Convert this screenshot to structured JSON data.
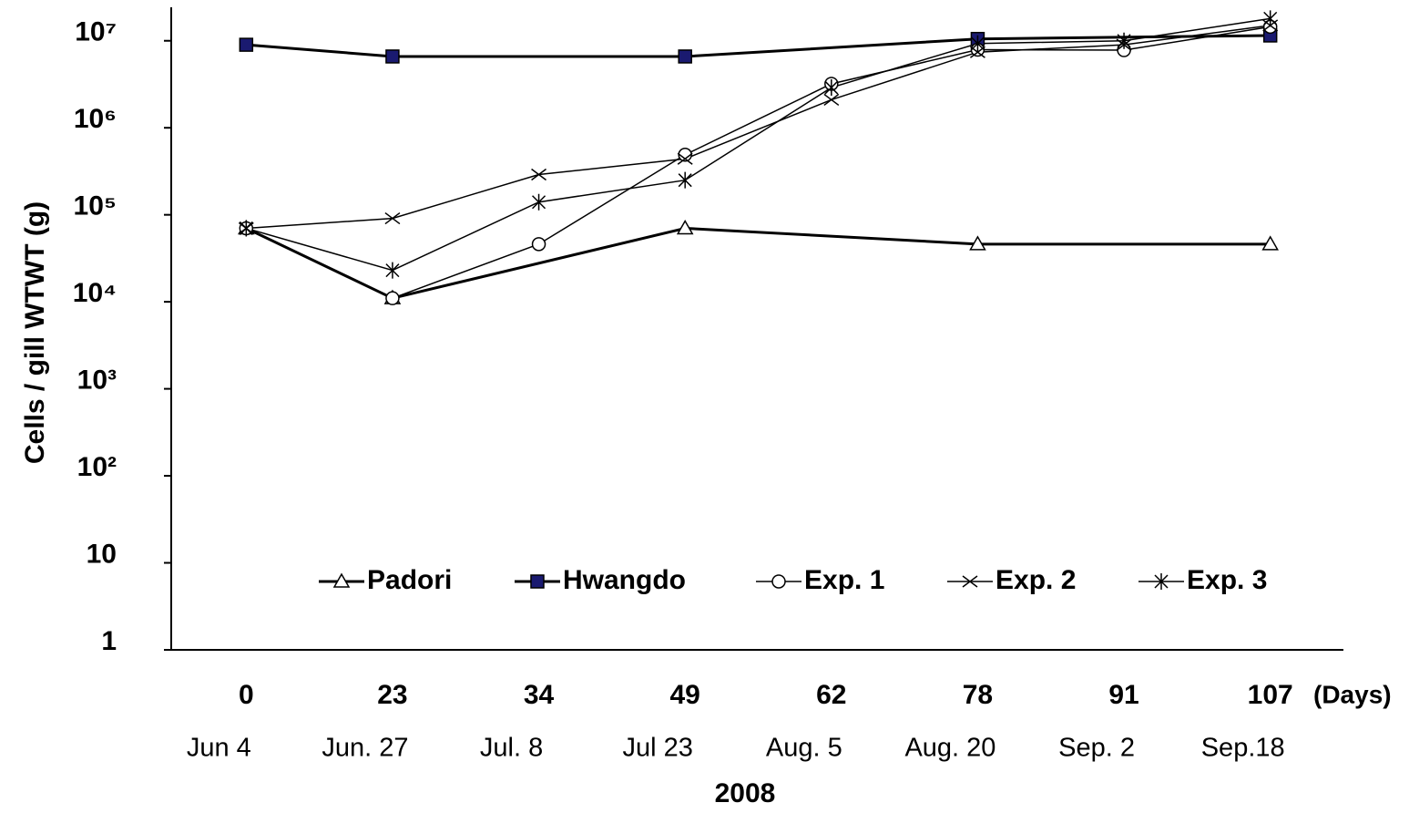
{
  "chart_data": {
    "type": "line",
    "ylabel": "Cells  /  gill WTWT (g)",
    "xlabel": "2008",
    "x_unit": "(Days)",
    "categories": [
      "0",
      "23",
      "34",
      "49",
      "62",
      "78",
      "91",
      "107"
    ],
    "dates": [
      "Jun 4",
      "Jun. 27",
      "Jul. 8",
      "Jul 23",
      "Aug. 5",
      "Aug. 20",
      "Sep. 2",
      "Sep.18"
    ],
    "log_y": true,
    "span_gaps": true,
    "legend": "bottom",
    "ylim": [
      1,
      20000000
    ],
    "yticks": [
      1,
      10,
      {
        "value": 100,
        "label": "10²"
      },
      {
        "value": 1000,
        "label": "10³"
      },
      {
        "value": 10000,
        "label": "10⁴"
      },
      {
        "value": 100000,
        "label": "10⁵"
      },
      {
        "value": 1000000,
        "label": "10⁶"
      },
      {
        "value": 10000000,
        "label": "10⁷"
      }
    ],
    "series": [
      {
        "name": "Padori",
        "color": "#000000",
        "marker": "triangle",
        "width": 3,
        "values": [
          70000,
          11000,
          null,
          70000,
          null,
          46000,
          null,
          46000
        ]
      },
      {
        "name": "Hwangdo",
        "color": "#000000",
        "marker": "square",
        "marker_color": "#1a1a70",
        "width": 3,
        "values": [
          9000000,
          6600000,
          null,
          6600000,
          null,
          10500000,
          null,
          11500000
        ]
      },
      {
        "name": "Exp. 1",
        "color": "#000000",
        "marker": "circle",
        "width": 1.5,
        "values": [
          70000,
          11000,
          46000,
          490000,
          3200000,
          7900000,
          7800000,
          14500000
        ]
      },
      {
        "name": "Exp. 2",
        "color": "#000000",
        "marker": "x",
        "width": 1.5,
        "values": [
          70000,
          91000,
          290000,
          440000,
          2100000,
          7400000,
          9000000,
          15000000
        ]
      },
      {
        "name": "Exp. 3",
        "color": "#000000",
        "marker": "star",
        "width": 1.5,
        "values": [
          70000,
          23000,
          140000,
          250000,
          2900000,
          9300000,
          10000000,
          18000000
        ]
      }
    ]
  }
}
